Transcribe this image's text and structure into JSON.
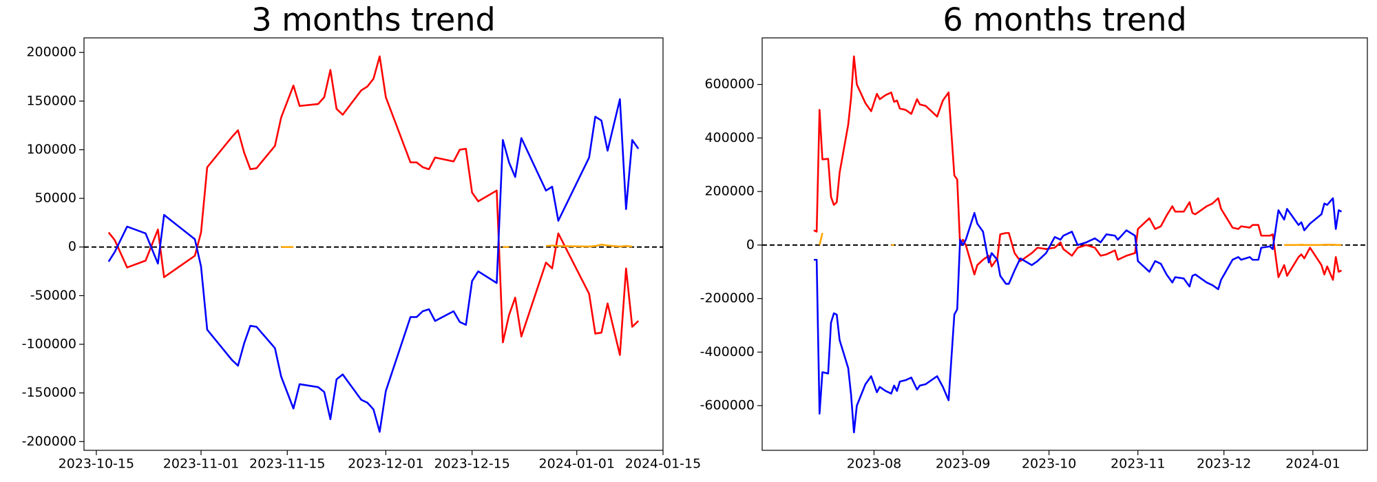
{
  "chart_data": [
    {
      "type": "line",
      "title": "3 months trend",
      "x": [
        "2023-10-17",
        "2023-10-18",
        "2023-10-20",
        "2023-10-23",
        "2023-10-25",
        "2023-10-26",
        "2023-10-31",
        "2023-11-01",
        "2023-11-02",
        "2023-11-06",
        "2023-11-07",
        "2023-11-08",
        "2023-11-09",
        "2023-11-10",
        "2023-11-13",
        "2023-11-14",
        "2023-11-16",
        "2023-11-17",
        "2023-11-20",
        "2023-11-21",
        "2023-11-22",
        "2023-11-23",
        "2023-11-24",
        "2023-11-27",
        "2023-11-28",
        "2023-11-29",
        "2023-11-30",
        "2023-12-01",
        "2023-12-05",
        "2023-12-06",
        "2023-12-07",
        "2023-12-08",
        "2023-12-09",
        "2023-12-12",
        "2023-12-13",
        "2023-12-14",
        "2023-12-15",
        "2023-12-16",
        "2023-12-19",
        "2023-12-20",
        "2023-12-21",
        "2023-12-22",
        "2023-12-23",
        "2023-12-27",
        "2023-12-28",
        "2023-12-29",
        "2024-01-03",
        "2024-01-04",
        "2024-01-05",
        "2024-01-06",
        "2024-01-08",
        "2024-01-09",
        "2024-01-10",
        "2024-01-11"
      ],
      "series": [
        {
          "color": "red",
          "values": [
            15000,
            7000,
            -21000,
            -14000,
            18000,
            -31000,
            -9000,
            15000,
            82000,
            113000,
            120000,
            97000,
            80000,
            81000,
            104000,
            133000,
            166000,
            145000,
            147000,
            154000,
            182000,
            142000,
            136000,
            161000,
            165000,
            173000,
            196000,
            154000,
            87000,
            87000,
            82000,
            80000,
            92000,
            88000,
            100000,
            101000,
            56000,
            47000,
            58000,
            -98000,
            -70000,
            -52000,
            -92000,
            -16000,
            -22000,
            14000,
            -48000,
            -89000,
            -88000,
            -58000,
            -111000,
            -22000,
            -82000,
            -76000
          ]
        },
        {
          "color": "blue",
          "values": [
            -15000,
            -5000,
            21000,
            14000,
            -17000,
            33000,
            8000,
            -20000,
            -85000,
            -116000,
            -122000,
            -99000,
            -81000,
            -82000,
            -104000,
            -133000,
            -166000,
            -141000,
            -144000,
            -149000,
            -177000,
            -136000,
            -131000,
            -157000,
            -160000,
            -167000,
            -190000,
            -148000,
            -72000,
            -72000,
            -66000,
            -64000,
            -76000,
            -66000,
            -77000,
            -80000,
            -35000,
            -25000,
            -37000,
            110000,
            87000,
            72000,
            112000,
            58000,
            62000,
            27000,
            92000,
            134000,
            130000,
            99000,
            152000,
            39000,
            110000,
            101000
          ]
        },
        {
          "color": "orange",
          "values": [
            null,
            null,
            null,
            null,
            null,
            null,
            null,
            null,
            null,
            null,
            null,
            null,
            null,
            null,
            null,
            0,
            0,
            null,
            null,
            null,
            null,
            null,
            null,
            null,
            null,
            null,
            null,
            null,
            null,
            null,
            null,
            null,
            null,
            null,
            null,
            null,
            null,
            null,
            null,
            0,
            0,
            null,
            null,
            1000,
            1500,
            1000,
            500,
            1000,
            2500,
            1500,
            500,
            1000,
            500,
            null
          ]
        }
      ],
      "xlim": [
        "2023-10-13",
        "2024-01-15"
      ],
      "xticks": [
        "2023-10-15",
        "2023-11-01",
        "2023-11-15",
        "2023-12-01",
        "2023-12-15",
        "2024-01-01",
        "2024-01-15"
      ],
      "ylim": [
        -209000,
        215000
      ],
      "yticks": [
        -200000,
        -150000,
        -100000,
        -50000,
        0,
        50000,
        100000,
        150000,
        200000
      ],
      "hline": 0
    },
    {
      "type": "line",
      "title": "6 months trend",
      "x": [
        "2023-07-11",
        "2023-07-12",
        "2023-07-13",
        "2023-07-14",
        "2023-07-16",
        "2023-07-17",
        "2023-07-18",
        "2023-07-19",
        "2023-07-20",
        "2023-07-23",
        "2023-07-24",
        "2023-07-25",
        "2023-07-26",
        "2023-07-29",
        "2023-07-31",
        "2023-08-02",
        "2023-08-03",
        "2023-08-05",
        "2023-08-07",
        "2023-08-08",
        "2023-08-09",
        "2023-08-10",
        "2023-08-12",
        "2023-08-14",
        "2023-08-16",
        "2023-08-17",
        "2023-08-19",
        "2023-08-23",
        "2023-08-25",
        "2023-08-27",
        "2023-08-29",
        "2023-08-30",
        "2023-08-31",
        "2023-09-01",
        "2023-09-02",
        "2023-09-05",
        "2023-09-06",
        "2023-09-08",
        "2023-09-10",
        "2023-09-11",
        "2023-09-13",
        "2023-09-14",
        "2023-09-16",
        "2023-09-17",
        "2023-09-19",
        "2023-09-21",
        "2023-09-25",
        "2023-09-27",
        "2023-09-30",
        "2023-10-03",
        "2023-10-05",
        "2023-10-06",
        "2023-10-09",
        "2023-10-11",
        "2023-10-14",
        "2023-10-17",
        "2023-10-19",
        "2023-10-21",
        "2023-10-24",
        "2023-10-25",
        "2023-10-28",
        "2023-10-31",
        "2023-11-01",
        "2023-11-05",
        "2023-11-07",
        "2023-11-09",
        "2023-11-11",
        "2023-11-13",
        "2023-11-14",
        "2023-11-17",
        "2023-11-19",
        "2023-11-20",
        "2023-11-21",
        "2023-11-25",
        "2023-11-27",
        "2023-11-29",
        "2023-11-30",
        "2023-12-04",
        "2023-12-06",
        "2023-12-07",
        "2023-12-10",
        "2023-12-11",
        "2023-12-13",
        "2023-12-14",
        "2023-12-17",
        "2023-12-18",
        "2023-12-20",
        "2023-12-22",
        "2023-12-23",
        "2023-12-27",
        "2023-12-28",
        "2023-12-29",
        "2023-12-31",
        "2024-01-04",
        "2024-01-05",
        "2024-01-06",
        "2024-01-08",
        "2024-01-09",
        "2024-01-10",
        "2024-01-11"
      ],
      "series": [
        {
          "color": "red",
          "values": [
            55000,
            50000,
            505000,
            320000,
            322000,
            180000,
            150000,
            160000,
            270000,
            450000,
            550000,
            705000,
            600000,
            530000,
            500000,
            565000,
            545000,
            560000,
            570000,
            535000,
            540000,
            510000,
            505000,
            490000,
            545000,
            525000,
            520000,
            480000,
            540000,
            570000,
            260000,
            245000,
            0,
            20000,
            0,
            -110000,
            -75000,
            -55000,
            -40000,
            -80000,
            -50000,
            40000,
            45000,
            45000,
            -30000,
            -60000,
            -30000,
            -10000,
            -15000,
            -10000,
            10000,
            -15000,
            -40000,
            -10000,
            0,
            -10000,
            -40000,
            -35000,
            -20000,
            -55000,
            -40000,
            -30000,
            60000,
            100000,
            60000,
            70000,
            110000,
            145000,
            125000,
            125000,
            160000,
            120000,
            115000,
            145000,
            155000,
            175000,
            135000,
            65000,
            60000,
            70000,
            65000,
            75000,
            75000,
            35000,
            35000,
            40000,
            -120000,
            -75000,
            -115000,
            -45000,
            -35000,
            -50000,
            -10000,
            -75000,
            -110000,
            -80000,
            -130000,
            -45000,
            -100000,
            -95000
          ]
        },
        {
          "color": "blue",
          "values": [
            -55000,
            -55000,
            -630000,
            -475000,
            -480000,
            -290000,
            -255000,
            -260000,
            -355000,
            -460000,
            -560000,
            -700000,
            -600000,
            -520000,
            -490000,
            -550000,
            -530000,
            -545000,
            -555000,
            -525000,
            -545000,
            -510000,
            -505000,
            -495000,
            -540000,
            -525000,
            -520000,
            -490000,
            -530000,
            -580000,
            -260000,
            -240000,
            20000,
            0,
            20000,
            120000,
            80000,
            50000,
            -65000,
            -30000,
            -55000,
            -115000,
            -145000,
            -145000,
            -95000,
            -50000,
            -75000,
            -60000,
            -30000,
            30000,
            20000,
            35000,
            50000,
            0,
            10000,
            25000,
            10000,
            40000,
            35000,
            20000,
            55000,
            35000,
            -60000,
            -100000,
            -60000,
            -70000,
            -110000,
            -140000,
            -120000,
            -125000,
            -155000,
            -115000,
            -110000,
            -140000,
            -150000,
            -165000,
            -130000,
            -55000,
            -45000,
            -55000,
            -45000,
            -55000,
            -55000,
            -10000,
            -5000,
            -15000,
            130000,
            95000,
            135000,
            75000,
            85000,
            55000,
            80000,
            115000,
            155000,
            150000,
            175000,
            60000,
            130000,
            125000
          ]
        },
        {
          "color": "orange",
          "values": [
            null,
            null,
            0,
            45000,
            null,
            null,
            null,
            null,
            null,
            null,
            null,
            null,
            null,
            null,
            null,
            null,
            null,
            null,
            0,
            0,
            null,
            null,
            null,
            null,
            null,
            null,
            null,
            null,
            null,
            null,
            null,
            null,
            null,
            null,
            null,
            null,
            null,
            null,
            null,
            null,
            null,
            null,
            null,
            null,
            null,
            null,
            null,
            null,
            null,
            null,
            null,
            null,
            null,
            null,
            null,
            null,
            null,
            null,
            null,
            null,
            null,
            null,
            null,
            null,
            null,
            null,
            null,
            null,
            null,
            null,
            null,
            null,
            null,
            null,
            null,
            null,
            null,
            null,
            null,
            null,
            null,
            null,
            null,
            null,
            null,
            null,
            null,
            0,
            0,
            500,
            1000,
            500,
            0,
            500,
            1000,
            1500,
            1000,
            500,
            0,
            0
          ]
        }
      ],
      "xlim": [
        "2023-06-23",
        "2024-01-20"
      ],
      "xticks": [
        "2023-08",
        "2023-09",
        "2023-10",
        "2023-11",
        "2023-12",
        "2024-01"
      ],
      "ylim": [
        -767000,
        774000
      ],
      "yticks": [
        -600000,
        -400000,
        -200000,
        0,
        200000,
        400000,
        600000
      ],
      "hline": 0
    }
  ]
}
